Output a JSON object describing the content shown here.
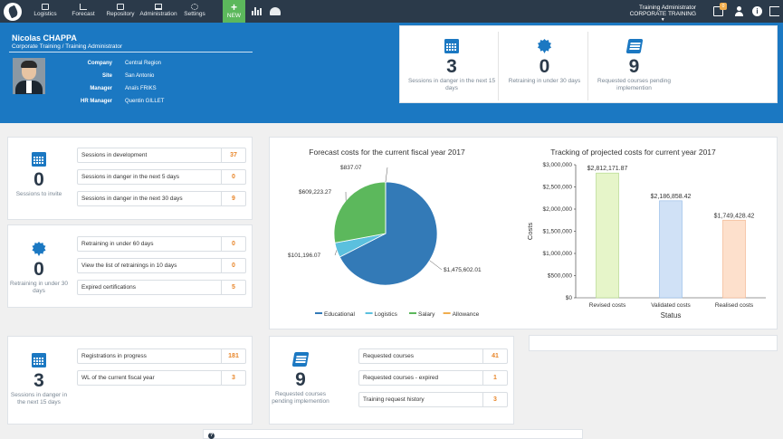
{
  "nav": {
    "items": [
      {
        "label": "Logistics",
        "icon": "box-icon"
      },
      {
        "label": "Forecast",
        "icon": "line-chart-icon"
      },
      {
        "label": "Repository",
        "icon": "laptop-icon"
      },
      {
        "label": "Administration",
        "icon": "monitor-icon"
      },
      {
        "label": "Settings",
        "icon": "gear-icon"
      }
    ],
    "new_label": "NEW",
    "role_title": "Training Administrator",
    "role_org": "CORPORATE TRAINING",
    "notification_count": "0"
  },
  "profile": {
    "name": "Nicolas CHAPPA",
    "subtitle": "Corporate Training / Training Administrator",
    "fields": [
      {
        "key": "Company",
        "value": "Central Region"
      },
      {
        "key": "Site",
        "value": "San Antonio"
      },
      {
        "key": "Manager",
        "value": "Anaïs FRIKS"
      },
      {
        "key": "HR Manager",
        "value": "Quentin GILLET"
      }
    ]
  },
  "header_stats": [
    {
      "value": "3",
      "label": "Sessions in danger in the next 15 days",
      "icon": "calendar-icon"
    },
    {
      "value": "0",
      "label": "Retraining in under 30 days",
      "icon": "badge-icon"
    },
    {
      "value": "9",
      "label": "Requested courses pending implemention",
      "icon": "book-icon"
    }
  ],
  "sessions_panel": {
    "kpi_value": "0",
    "kpi_label": "Sessions to invite",
    "rows": [
      {
        "label": "Sessions in development",
        "value": "37"
      },
      {
        "label": "Sessions in danger in the next 5 days",
        "value": "0"
      },
      {
        "label": "Sessions in danger in the next 30 days",
        "value": "9"
      }
    ]
  },
  "retraining_panel": {
    "kpi_value": "0",
    "kpi_label": "Retraining in under 30 days",
    "rows": [
      {
        "label": "Retraining in under 60 days",
        "value": "0"
      },
      {
        "label": "View the list of retrainings in 10 days",
        "value": "0"
      },
      {
        "label": "Expired certifications",
        "value": "5"
      }
    ]
  },
  "registrations_panel": {
    "kpi_value": "3",
    "kpi_label": "Sessions in danger in the next 15 days",
    "rows": [
      {
        "label": "Registrations in progress",
        "value": "181"
      },
      {
        "label": "WL of the current fiscal year",
        "value": "3"
      }
    ]
  },
  "courses_panel": {
    "kpi_value": "9",
    "kpi_label": "Requested courses pending implemention",
    "rows": [
      {
        "label": "Requested courses",
        "value": "41"
      },
      {
        "label": "Requested courses - expired",
        "value": "1"
      },
      {
        "label": "Training request history",
        "value": "3"
      }
    ]
  },
  "colors": {
    "educational": "#337ab7",
    "logistics": "#5bc0de",
    "salary": "#5cb85c",
    "allowance": "#f0ad4e"
  },
  "chart_data": [
    {
      "type": "pie",
      "title": "Forecast costs for the current fiscal year 2017",
      "categories": [
        "Educational",
        "Logistics",
        "Salary",
        "Allowance"
      ],
      "values": [
        1475602.01,
        101196.07,
        609223.27,
        837.07
      ],
      "labels": [
        "$1,475,602.01",
        "$101,196.07",
        "$609,223.27",
        "$837.07"
      ],
      "legend": "bottom"
    },
    {
      "type": "bar",
      "title": "Tracking of projected costs for current year 2017",
      "categories": [
        "Revised costs",
        "Validated costs",
        "Realised costs"
      ],
      "values": [
        2812171.87,
        2186858.42,
        1749428.42
      ],
      "labels": [
        "$2,812,171.87",
        "$2,186,858.42",
        "$1,749,428.42"
      ],
      "bar_colors": [
        "#e6f5c9",
        "#d0e1f6",
        "#fde0cc"
      ],
      "bar_borders": [
        "#b5d98f",
        "#9bbfe8",
        "#f3b893"
      ],
      "xlabel": "Status",
      "ylabel": "Costs",
      "ylim": [
        0,
        3000000
      ],
      "yticks": [
        0,
        500000,
        1000000,
        1500000,
        2000000,
        2500000,
        3000000
      ],
      "ytick_labels": [
        "$0",
        "$500,000",
        "$1,000,000",
        "$1,500,000",
        "$2,000,000",
        "$2,500,000",
        "$3,000,000"
      ],
      "grid": false
    }
  ]
}
